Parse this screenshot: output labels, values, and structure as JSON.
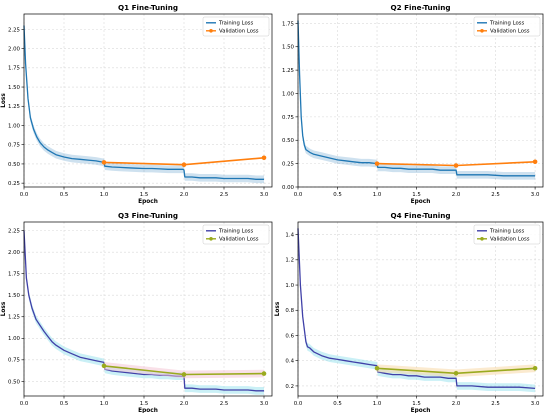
{
  "figure": {
    "layout": "2x2 grid",
    "panel_background": "#ffffff",
    "grid": true
  },
  "chart_data": [
    {
      "type": "line",
      "title": "Q1 Fine-Tuning",
      "xlabel": "Epoch",
      "ylabel": "Loss",
      "xlim": [
        0,
        3.1
      ],
      "ylim": [
        0.2,
        2.45
      ],
      "xticks": [
        "0.0",
        "0.5",
        "1.0",
        "1.5",
        "2.0",
        "2.5",
        "3.0"
      ],
      "yticks": [
        "0.25",
        "0.50",
        "0.75",
        "1.00",
        "1.25",
        "1.50",
        "1.75",
        "2.00",
        "2.25"
      ],
      "legend": "top-right",
      "series": [
        {
          "name": "Training Loss",
          "color": "#1f77b4",
          "band": true,
          "x": [
            0,
            0.02,
            0.05,
            0.08,
            0.12,
            0.16,
            0.2,
            0.25,
            0.3,
            0.35,
            0.4,
            0.5,
            0.6,
            0.7,
            0.8,
            0.9,
            1.0,
            1.01,
            1.1,
            1.2,
            1.3,
            1.4,
            1.5,
            1.6,
            1.7,
            1.8,
            1.9,
            1.99,
            2.0,
            2.01,
            2.1,
            2.2,
            2.3,
            2.4,
            2.5,
            2.6,
            2.7,
            2.8,
            2.9,
            3.0
          ],
          "y": [
            2.3,
            1.8,
            1.35,
            1.1,
            0.95,
            0.85,
            0.78,
            0.72,
            0.68,
            0.65,
            0.62,
            0.59,
            0.57,
            0.56,
            0.55,
            0.54,
            0.52,
            0.47,
            0.46,
            0.455,
            0.45,
            0.445,
            0.44,
            0.44,
            0.435,
            0.43,
            0.43,
            0.43,
            0.42,
            0.33,
            0.33,
            0.32,
            0.32,
            0.32,
            0.31,
            0.31,
            0.31,
            0.31,
            0.3,
            0.3
          ]
        },
        {
          "name": "Validation Loss",
          "color": "#ff7f0e",
          "band": false,
          "marker": true,
          "x": [
            1.0,
            2.0,
            3.0
          ],
          "y": [
            0.52,
            0.49,
            0.58
          ]
        }
      ]
    },
    {
      "type": "line",
      "title": "Q2 Fine-Tuning",
      "xlabel": "Epoch",
      "ylabel": "",
      "xlim": [
        0,
        3.1
      ],
      "ylim": [
        0,
        1.85
      ],
      "xticks": [
        "0.0",
        "0.5",
        "1.0",
        "1.5",
        "2.0",
        "2.5",
        "3.0"
      ],
      "yticks": [
        "0.00",
        "0.25",
        "0.50",
        "0.75",
        "1.00",
        "1.25",
        "1.50",
        "1.75"
      ],
      "legend": "top-right",
      "series": [
        {
          "name": "Training Loss",
          "color": "#1f77b4",
          "band": true,
          "x": [
            0,
            0.02,
            0.04,
            0.06,
            0.08,
            0.1,
            0.15,
            0.2,
            0.3,
            0.4,
            0.5,
            0.6,
            0.7,
            0.8,
            0.9,
            1.0,
            1.01,
            1.1,
            1.2,
            1.3,
            1.4,
            1.5,
            1.6,
            1.7,
            1.8,
            1.9,
            1.99,
            2.0,
            2.01,
            2.2,
            2.4,
            2.6,
            2.8,
            3.0
          ],
          "y": [
            1.78,
            1.2,
            0.75,
            0.55,
            0.45,
            0.4,
            0.37,
            0.35,
            0.33,
            0.31,
            0.29,
            0.28,
            0.27,
            0.26,
            0.26,
            0.25,
            0.21,
            0.21,
            0.2,
            0.2,
            0.19,
            0.19,
            0.19,
            0.19,
            0.18,
            0.18,
            0.18,
            0.18,
            0.13,
            0.13,
            0.13,
            0.12,
            0.12,
            0.12
          ]
        },
        {
          "name": "Validation Loss",
          "color": "#ff7f0e",
          "band": false,
          "marker": true,
          "x": [
            1.0,
            2.0,
            3.0
          ],
          "y": [
            0.25,
            0.23,
            0.27
          ]
        }
      ]
    },
    {
      "type": "line",
      "title": "Q3 Fine-Tuning",
      "xlabel": "Epoch",
      "ylabel": "Loss",
      "xlim": [
        0,
        3.1
      ],
      "ylim": [
        0.33,
        2.35
      ],
      "xticks": [
        "0.0",
        "0.5",
        "1.0",
        "1.5",
        "2.0",
        "2.5",
        "3.0"
      ],
      "yticks": [
        "0.50",
        "0.75",
        "1.00",
        "1.25",
        "1.50",
        "1.75",
        "2.00",
        "2.25"
      ],
      "legend": "top-right",
      "series": [
        {
          "name": "Training Loss",
          "color": "#4040a8",
          "band": true,
          "bandColor": "#9ee4ee",
          "x": [
            0,
            0.03,
            0.06,
            0.1,
            0.15,
            0.2,
            0.25,
            0.3,
            0.35,
            0.4,
            0.5,
            0.6,
            0.7,
            0.8,
            0.9,
            1.0,
            1.01,
            1.1,
            1.2,
            1.3,
            1.4,
            1.5,
            1.6,
            1.7,
            1.8,
            1.9,
            1.99,
            2.0,
            2.01,
            2.1,
            2.2,
            2.3,
            2.4,
            2.5,
            2.6,
            2.7,
            2.8,
            2.9,
            3.0
          ],
          "y": [
            2.25,
            1.7,
            1.5,
            1.35,
            1.22,
            1.15,
            1.08,
            1.02,
            0.96,
            0.92,
            0.86,
            0.82,
            0.78,
            0.76,
            0.74,
            0.72,
            0.64,
            0.62,
            0.61,
            0.6,
            0.59,
            0.58,
            0.58,
            0.57,
            0.57,
            0.56,
            0.56,
            0.56,
            0.42,
            0.42,
            0.41,
            0.41,
            0.41,
            0.4,
            0.4,
            0.4,
            0.4,
            0.39,
            0.39
          ]
        },
        {
          "name": "Validation Loss",
          "color": "#9aaa1e",
          "band": true,
          "bandColor": "#f4c6d6",
          "marker": true,
          "x": [
            1.0,
            2.0,
            3.0
          ],
          "y": [
            0.68,
            0.58,
            0.59
          ]
        }
      ]
    },
    {
      "type": "line",
      "title": "Q4 Fine-Tuning",
      "xlabel": "Epoch",
      "ylabel": "Loss",
      "xlim": [
        0,
        3.1
      ],
      "ylim": [
        0.12,
        1.5
      ],
      "xticks": [
        "0.0",
        "0.5",
        "1.0",
        "1.5",
        "2.0",
        "2.5",
        "3.0"
      ],
      "yticks": [
        "0.2",
        "0.4",
        "0.6",
        "0.8",
        "1.0",
        "1.2",
        "1.4"
      ],
      "legend": "top-right",
      "series": [
        {
          "name": "Training Loss",
          "color": "#4040a8",
          "band": true,
          "bandColor": "#9ee4ee",
          "x": [
            0,
            0.03,
            0.06,
            0.1,
            0.12,
            0.15,
            0.2,
            0.3,
            0.4,
            0.5,
            0.6,
            0.7,
            0.8,
            0.9,
            1.0,
            1.01,
            1.1,
            1.2,
            1.3,
            1.4,
            1.5,
            1.6,
            1.7,
            1.8,
            1.9,
            1.99,
            2.0,
            2.01,
            2.2,
            2.4,
            2.6,
            2.8,
            3.0
          ],
          "y": [
            1.45,
            1.0,
            0.75,
            0.55,
            0.51,
            0.5,
            0.47,
            0.44,
            0.42,
            0.41,
            0.4,
            0.39,
            0.38,
            0.37,
            0.36,
            0.31,
            0.3,
            0.29,
            0.29,
            0.28,
            0.28,
            0.27,
            0.27,
            0.27,
            0.26,
            0.26,
            0.26,
            0.2,
            0.2,
            0.19,
            0.19,
            0.19,
            0.18
          ]
        },
        {
          "name": "Validation Loss",
          "color": "#9aaa1e",
          "band": true,
          "bandColor": "#f7d8a8",
          "marker": true,
          "x": [
            1.0,
            2.0,
            3.0
          ],
          "y": [
            0.34,
            0.3,
            0.34
          ]
        }
      ]
    }
  ]
}
